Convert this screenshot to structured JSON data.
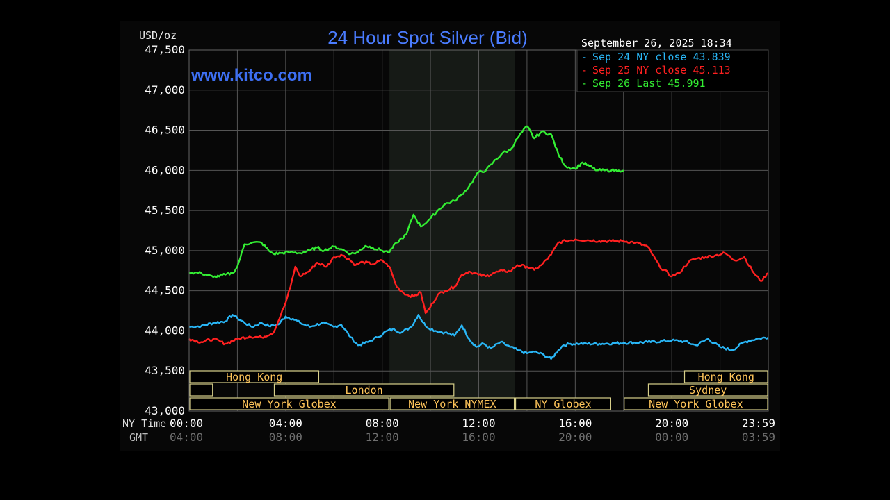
{
  "chart_data": {
    "type": "line",
    "title": "24 Hour Spot Silver (Bid)",
    "watermark": "www.kitco.com",
    "ylabel": "USD/oz",
    "timestamp": "September 26, 2025 18:34",
    "ylim": [
      43.0,
      47.5
    ],
    "y_ticks": [
      "47,500",
      "47,000",
      "46,500",
      "46,000",
      "45,500",
      "45,000",
      "44,500",
      "44,000",
      "43,500",
      "43,000"
    ],
    "xlim": [
      0,
      24
    ],
    "x_row1_label": "NY Time",
    "x_row2_label": "GMT",
    "x_ticks_ny": [
      "00:00",
      "04:00",
      "08:00",
      "12:00",
      "16:00",
      "20:00",
      "23:59"
    ],
    "x_ticks_gmt": [
      "04:00",
      "08:00",
      "12:00",
      "16:00",
      "20:00",
      "00:00",
      "03:59"
    ],
    "grid": true,
    "legend_position": "top-right",
    "shaded_region": [
      8.3,
      13.5
    ],
    "sessions": [
      {
        "label": "Hong Kong",
        "row": 0,
        "start": 0,
        "end": 5.4
      },
      {
        "label": "Hong Kong",
        "row": 0,
        "start": 20.5,
        "end": 24
      },
      {
        "label": "",
        "row": 1,
        "start": 0,
        "end": 1.0
      },
      {
        "label": "London",
        "row": 1,
        "start": 3.5,
        "end": 11.0
      },
      {
        "label": "Sydney",
        "row": 1,
        "start": 19.0,
        "end": 24
      },
      {
        "label": "New York Globex",
        "row": 2,
        "start": 0,
        "end": 8.3
      },
      {
        "label": "New York NYMEX",
        "row": 2,
        "start": 8.3,
        "end": 13.5
      },
      {
        "label": "NY Globex",
        "row": 2,
        "start": 13.5,
        "end": 17.5
      },
      {
        "label": "New York Globex",
        "row": 2,
        "start": 18.0,
        "end": 24
      }
    ],
    "series": [
      {
        "name": "Sep 24 NY close 43.839",
        "color": "#29b6f6",
        "x": [
          0,
          0.5,
          1,
          1.5,
          1.8,
          2.0,
          2.3,
          2.6,
          3.0,
          3.3,
          3.7,
          4.0,
          4.3,
          4.6,
          5.0,
          5.5,
          6.0,
          6.3,
          6.7,
          7.0,
          7.4,
          7.8,
          8.2,
          8.5,
          8.8,
          9.2,
          9.5,
          9.8,
          10.2,
          10.6,
          11.0,
          11.3,
          11.6,
          11.9,
          12.2,
          12.5,
          12.9,
          13.3,
          13.6,
          14.0,
          14.3,
          14.7,
          15.0,
          15.3,
          15.5,
          15.8,
          16.2,
          17.0,
          18.0,
          19.0,
          20.0,
          20.5,
          21.0,
          21.5,
          22.0,
          22.5,
          23.0,
          23.5,
          24.0
        ],
        "values": [
          44.05,
          44.06,
          44.1,
          44.12,
          44.2,
          44.16,
          44.1,
          44.05,
          44.1,
          44.06,
          44.08,
          44.18,
          44.15,
          44.1,
          44.05,
          44.1,
          44.05,
          44.08,
          43.92,
          43.82,
          43.86,
          43.92,
          44.0,
          44.02,
          43.98,
          44.05,
          44.2,
          44.06,
          44.0,
          43.98,
          43.94,
          44.07,
          43.9,
          43.8,
          43.84,
          43.78,
          43.86,
          43.8,
          43.76,
          43.72,
          43.74,
          43.7,
          43.65,
          43.76,
          43.82,
          43.84,
          43.84,
          43.84,
          43.85,
          43.86,
          43.88,
          43.87,
          43.82,
          43.9,
          43.8,
          43.76,
          43.86,
          43.9,
          43.92
        ]
      },
      {
        "name": "Sep 25 NY close 45.113",
        "color": "#ff2020",
        "x": [
          0,
          0.5,
          1.0,
          1.5,
          2.0,
          2.5,
          3.0,
          3.5,
          3.8,
          4.0,
          4.2,
          4.4,
          4.6,
          5.0,
          5.3,
          5.7,
          6.0,
          6.3,
          6.6,
          6.9,
          7.2,
          7.6,
          8.0,
          8.3,
          8.6,
          9.0,
          9.3,
          9.6,
          9.8,
          10.0,
          10.3,
          10.6,
          11.0,
          11.3,
          11.6,
          12.0,
          12.3,
          12.6,
          13.0,
          13.3,
          13.6,
          14.0,
          14.3,
          14.6,
          15.0,
          15.3,
          15.6,
          16.0,
          16.5,
          17.0,
          17.5,
          18.0,
          18.5,
          19.0,
          19.5,
          20.0,
          20.3,
          20.7,
          21.0,
          21.4,
          21.8,
          22.2,
          22.6,
          23.0,
          23.4,
          23.7,
          24.0
        ],
        "values": [
          43.9,
          43.86,
          43.9,
          43.84,
          43.9,
          43.93,
          43.92,
          43.98,
          44.2,
          44.35,
          44.55,
          44.8,
          44.68,
          44.75,
          44.85,
          44.8,
          44.92,
          44.95,
          44.9,
          44.82,
          44.86,
          44.83,
          44.88,
          44.8,
          44.55,
          44.45,
          44.43,
          44.48,
          44.22,
          44.3,
          44.45,
          44.5,
          44.55,
          44.7,
          44.74,
          44.7,
          44.68,
          44.72,
          44.75,
          44.74,
          44.82,
          44.8,
          44.76,
          44.82,
          44.95,
          45.1,
          45.12,
          45.14,
          45.13,
          45.12,
          45.12,
          45.12,
          45.1,
          45.05,
          44.8,
          44.68,
          44.72,
          44.86,
          44.9,
          44.92,
          44.94,
          44.97,
          44.88,
          44.92,
          44.72,
          44.62,
          44.72
        ]
      },
      {
        "name": "Sep 26 Last 45.991",
        "color": "#33ee33",
        "x": [
          0,
          0.5,
          1.0,
          1.5,
          1.8,
          2.0,
          2.3,
          2.6,
          3.0,
          3.3,
          3.5,
          3.8,
          4.2,
          4.6,
          5.0,
          5.3,
          5.6,
          6.0,
          6.3,
          6.7,
          7.0,
          7.3,
          7.6,
          8.0,
          8.3,
          8.6,
          9.0,
          9.3,
          9.6,
          10.0,
          10.3,
          10.6,
          11.0,
          11.3,
          11.6,
          12.0,
          12.3,
          12.6,
          13.0,
          13.3,
          13.6,
          14.0,
          14.3,
          14.6,
          15.0,
          15.3,
          15.6,
          16.0,
          16.3,
          16.6,
          16.9,
          17.2,
          17.5,
          17.8,
          18.0
        ],
        "values": [
          44.73,
          44.72,
          44.67,
          44.7,
          44.72,
          44.8,
          45.08,
          45.1,
          45.1,
          45.0,
          44.96,
          44.97,
          44.98,
          44.97,
          45.0,
          45.04,
          45.0,
          45.05,
          45.02,
          44.96,
          44.98,
          45.06,
          45.04,
          45.0,
          44.98,
          45.1,
          45.2,
          45.45,
          45.3,
          45.4,
          45.5,
          45.58,
          45.62,
          45.7,
          45.8,
          45.98,
          46.0,
          46.1,
          46.22,
          46.25,
          46.4,
          46.55,
          46.4,
          46.48,
          46.45,
          46.2,
          46.05,
          46.02,
          46.1,
          46.05,
          46.0,
          46.0,
          46.0,
          46.0,
          46.0
        ]
      }
    ]
  }
}
